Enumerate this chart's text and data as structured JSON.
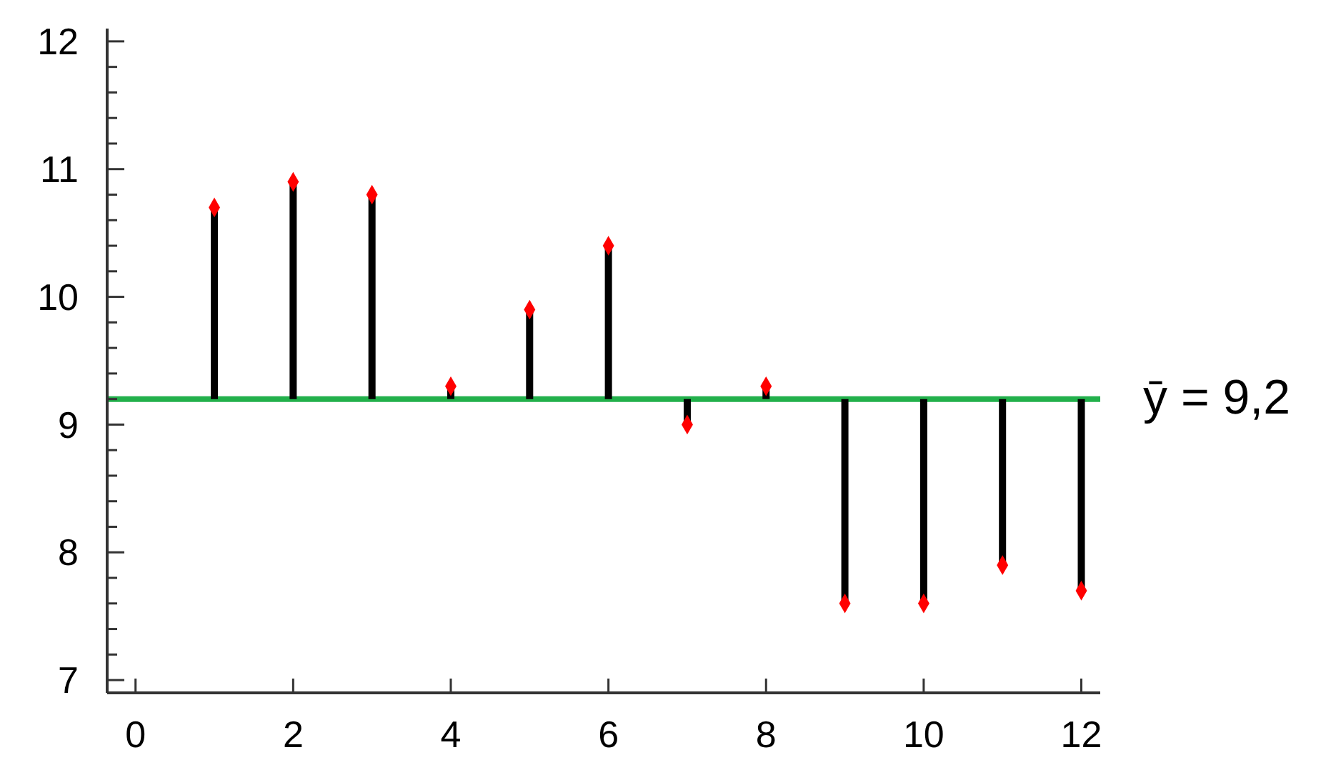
{
  "chart_data": {
    "type": "scatter",
    "x": [
      1,
      2,
      3,
      4,
      5,
      6,
      7,
      8,
      9,
      10,
      11,
      12
    ],
    "series": [
      {
        "color": "#ff0000",
        "marker": "diamond",
        "values": [
          10.7,
          10.9,
          10.8,
          9.3,
          9.9,
          10.4,
          9.0,
          9.3,
          7.6,
          7.6,
          7.9,
          7.7
        ],
        "errors": [
          [
            9.2,
            10.7
          ],
          [
            9.2,
            10.9
          ],
          [
            9.2,
            10.8
          ],
          [
            9.2,
            9.3
          ],
          [
            9.2,
            9.9
          ],
          [
            9.2,
            10.4
          ],
          [
            9.0,
            9.2
          ],
          [
            9.2,
            9.3
          ],
          [
            7.6,
            9.2
          ],
          [
            7.6,
            9.2
          ],
          [
            7.9,
            9.2
          ],
          [
            7.7,
            9.2
          ]
        ]
      }
    ],
    "xlim": [
      -0.36,
      12.24
    ],
    "xticks": [
      0,
      2,
      4,
      6,
      8,
      10,
      12
    ],
    "ylim": [
      6.9,
      12.1
    ],
    "yticks": [
      7,
      {
        "value": 7.2,
        "label": null
      },
      {
        "value": 7.4,
        "label": null
      },
      {
        "value": 7.6,
        "label": null
      },
      {
        "value": 7.8,
        "label": null
      },
      8,
      {
        "value": 8.2,
        "label": null
      },
      {
        "value": 8.4,
        "label": null
      },
      {
        "value": 8.6,
        "label": null
      },
      {
        "value": 8.8,
        "label": null
      },
      9,
      {
        "value": 9.2,
        "label": null
      },
      {
        "value": 9.4,
        "label": null
      },
      {
        "value": 9.6,
        "label": null
      },
      {
        "value": 9.8,
        "label": null
      },
      10,
      {
        "value": 10.2,
        "label": null
      },
      {
        "value": 10.4,
        "label": null
      },
      {
        "value": 10.6,
        "label": null
      },
      {
        "value": 10.8,
        "label": null
      },
      11,
      {
        "value": 11.2,
        "label": null
      },
      {
        "value": 11.4,
        "label": null
      },
      {
        "value": 11.6,
        "label": null
      },
      {
        "value": 11.8,
        "label": null
      },
      12
    ],
    "ref_lines": [
      {
        "axis": "y",
        "value": 9.2,
        "label": "ȳ = 9,2",
        "color": "#22b04b"
      }
    ],
    "grid": false
  }
}
